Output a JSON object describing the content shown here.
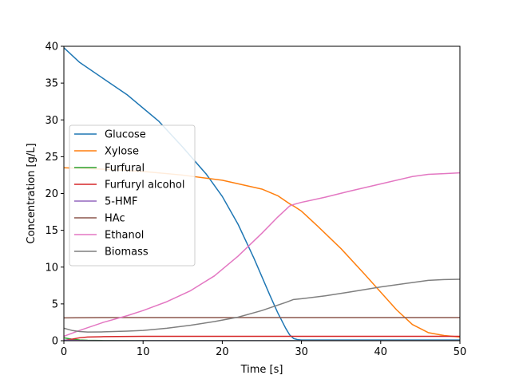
{
  "chart_data": {
    "type": "line",
    "title": "",
    "xlabel": "Time [s]",
    "ylabel": "Concentration [g/L]",
    "xlim": [
      0,
      50
    ],
    "ylim": [
      0,
      40
    ],
    "x_ticks": [
      0,
      10,
      20,
      30,
      40,
      50
    ],
    "y_ticks": [
      0,
      5,
      10,
      15,
      20,
      25,
      30,
      35,
      40
    ],
    "grid": false,
    "legend_position": "center-left",
    "series": [
      {
        "name": "Glucose",
        "color": "#1f77b4",
        "x": [
          0,
          2,
          5,
          8,
          10,
          12,
          15,
          18,
          20,
          22,
          24,
          26,
          27,
          28,
          28.5,
          29,
          29.5,
          30,
          40,
          50
        ],
        "y": [
          39.8,
          37.8,
          35.6,
          33.4,
          31.6,
          29.8,
          26.3,
          22.6,
          19.6,
          15.8,
          11.2,
          6.2,
          3.8,
          1.7,
          0.8,
          0.3,
          0.15,
          0.1,
          0.1,
          0.1
        ]
      },
      {
        "name": "Xylose",
        "color": "#ff7f0e",
        "x": [
          0,
          5,
          10,
          15,
          20,
          25,
          27,
          28.5,
          29,
          30,
          32,
          35,
          38,
          40,
          42,
          44,
          46,
          48,
          50
        ],
        "y": [
          23.5,
          23.3,
          23.0,
          22.5,
          21.8,
          20.6,
          19.7,
          18.6,
          18.3,
          17.6,
          15.6,
          12.5,
          9.0,
          6.6,
          4.2,
          2.2,
          1.1,
          0.7,
          0.5
        ]
      },
      {
        "name": "Furfural",
        "color": "#2ca02c",
        "x": [
          0,
          1,
          2,
          3,
          5,
          10,
          20,
          30,
          40,
          50
        ],
        "y": [
          0.4,
          0.2,
          0.1,
          0.05,
          0.02,
          0.0,
          0.0,
          0.0,
          0.0,
          0.0
        ]
      },
      {
        "name": "Furfuryl alcohol",
        "color": "#d62728",
        "x": [
          0,
          1,
          2,
          3,
          5,
          10,
          20,
          30,
          40,
          50
        ],
        "y": [
          0.05,
          0.2,
          0.4,
          0.5,
          0.55,
          0.6,
          0.6,
          0.6,
          0.6,
          0.6
        ]
      },
      {
        "name": "5-HMF",
        "color": "#9467bd",
        "x": [
          0,
          1,
          2,
          4,
          10,
          20,
          30,
          40,
          50
        ],
        "y": [
          0.1,
          0.05,
          0.02,
          0.0,
          0.0,
          0.0,
          0.0,
          0.0,
          0.0
        ]
      },
      {
        "name": "HAc",
        "color": "#8c564b",
        "x": [
          0,
          5,
          10,
          20,
          30,
          40,
          50
        ],
        "y": [
          3.1,
          3.15,
          3.15,
          3.15,
          3.15,
          3.15,
          3.15
        ]
      },
      {
        "name": "Ethanol",
        "color": "#e377c2",
        "x": [
          0,
          2,
          5,
          8,
          10,
          13,
          16,
          19,
          22,
          25,
          27,
          28.5,
          29,
          30,
          33,
          36,
          40,
          44,
          46,
          48,
          50
        ],
        "y": [
          0.6,
          1.4,
          2.5,
          3.4,
          4.1,
          5.3,
          6.8,
          8.8,
          11.5,
          14.6,
          16.8,
          18.3,
          18.5,
          18.8,
          19.5,
          20.3,
          21.3,
          22.3,
          22.6,
          22.7,
          22.8
        ]
      },
      {
        "name": "Biomass",
        "color": "#7f7f7f",
        "x": [
          0,
          1,
          2,
          3,
          5,
          8,
          10,
          13,
          16,
          19,
          22,
          25,
          28,
          29,
          30,
          33,
          36,
          40,
          44,
          46,
          48,
          50
        ],
        "y": [
          1.7,
          1.4,
          1.25,
          1.18,
          1.2,
          1.3,
          1.4,
          1.7,
          2.1,
          2.6,
          3.2,
          4.1,
          5.2,
          5.6,
          5.7,
          6.1,
          6.6,
          7.3,
          7.9,
          8.2,
          8.3,
          8.35
        ]
      }
    ]
  }
}
